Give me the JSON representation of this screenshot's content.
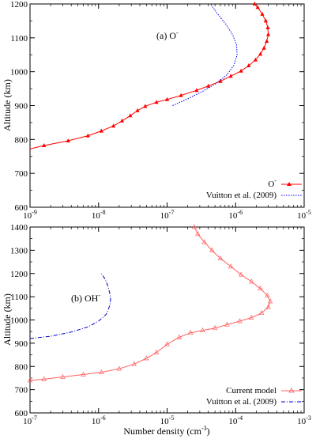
{
  "chart_data": [
    {
      "type": "line",
      "panel_label": "(a) O",
      "panel_label_superscript": "-",
      "xlabel": "",
      "ylabel": "Altitude (km)",
      "x_scale": "log",
      "xlim": [
        1e-09,
        1e-05
      ],
      "ylim": [
        600,
        1200
      ],
      "x_tick_exponents": [
        -9,
        -8,
        -7,
        -6,
        -5
      ],
      "y_ticks": [
        600,
        700,
        800,
        900,
        1000,
        1100,
        1200
      ],
      "legend_position": "bottom-right",
      "series": [
        {
          "name": "O",
          "name_superscript": "-",
          "color": "#ff0000",
          "style": "solid-with-triangle-markers",
          "points": [
            [
              9e-10,
              770
            ],
            [
              1.6e-09,
              782
            ],
            [
              3.6e-09,
              796
            ],
            [
              7e-09,
              811
            ],
            [
              1.1e-08,
              825
            ],
            [
              1.65e-08,
              840
            ],
            [
              2.2e-08,
              855
            ],
            [
              2.9e-08,
              870
            ],
            [
              3.7e-08,
              885
            ],
            [
              4.8e-08,
              898
            ],
            [
              7e-08,
              910
            ],
            [
              1e-07,
              918
            ],
            [
              1.6e-07,
              930
            ],
            [
              2.7e-07,
              945
            ],
            [
              4e-07,
              958
            ],
            [
              6e-07,
              972
            ],
            [
              8.5e-07,
              987
            ],
            [
              1.2e-06,
              1002
            ],
            [
              1.55e-06,
              1018
            ],
            [
              1.95e-06,
              1035
            ],
            [
              2.3e-06,
              1052
            ],
            [
              2.6e-06,
              1070
            ],
            [
              2.85e-06,
              1090
            ],
            [
              3e-06,
              1110
            ],
            [
              2.95e-06,
              1130
            ],
            [
              2.75e-06,
              1150
            ],
            [
              2.45e-06,
              1170
            ],
            [
              2.1e-06,
              1190
            ],
            [
              1.9e-06,
              1200
            ]
          ]
        },
        {
          "name": "Vuitton et al. (2009)",
          "color": "#0000ff",
          "style": "dotted",
          "points": [
            [
              1.2e-07,
              900
            ],
            [
              2e-07,
              920
            ],
            [
              3.3e-07,
              942
            ],
            [
              5.2e-07,
              965
            ],
            [
              7.4e-07,
              990
            ],
            [
              9.5e-07,
              1020
            ],
            [
              1.05e-06,
              1050
            ],
            [
              1.03e-06,
              1080
            ],
            [
              9e-07,
              1110
            ],
            [
              7.2e-07,
              1140
            ],
            [
              5.5e-07,
              1170
            ],
            [
              4.3e-07,
              1200
            ]
          ]
        }
      ]
    },
    {
      "type": "line",
      "panel_label": "(b) OH",
      "panel_label_superscript": "-",
      "xlabel": "Number density (cm",
      "xlabel_superscript": "-3",
      "xlabel_suffix": ")",
      "ylabel": "Altitude (km)",
      "x_scale": "log",
      "xlim": [
        1e-07,
        0.001
      ],
      "ylim": [
        600,
        1400
      ],
      "x_tick_exponents": [
        -7,
        -6,
        -5,
        -4,
        -3
      ],
      "y_ticks": [
        600,
        700,
        800,
        900,
        1000,
        1100,
        1200,
        1300,
        1400
      ],
      "legend_position": "bottom-right",
      "series": [
        {
          "name": "Current model",
          "color": "#ff6060",
          "style": "solid-with-open-triangle-markers",
          "points": [
            [
              1e-07,
              740
            ],
            [
              1.6e-07,
              745
            ],
            [
              3e-07,
              755
            ],
            [
              6e-07,
              765
            ],
            [
              1.1e-06,
              775
            ],
            [
              2e-06,
              790
            ],
            [
              3.3e-06,
              810
            ],
            [
              5e-06,
              835
            ],
            [
              7e-06,
              860
            ],
            [
              1e-05,
              895
            ],
            [
              1.5e-05,
              925
            ],
            [
              2.2e-05,
              945
            ],
            [
              3.3e-05,
              955
            ],
            [
              5e-05,
              965
            ],
            [
              7.5e-05,
              980
            ],
            [
              0.000115,
              995
            ],
            [
              0.00017,
              1010
            ],
            [
              0.00024,
              1030
            ],
            [
              0.0003,
              1055
            ],
            [
              0.00032,
              1080
            ],
            [
              0.00029,
              1105
            ],
            [
              0.00023,
              1135
            ],
            [
              0.00017,
              1165
            ],
            [
              0.00012,
              1195
            ],
            [
              8.5e-05,
              1230
            ],
            [
              6e-05,
              1265
            ],
            [
              4.5e-05,
              1300
            ],
            [
              3.5e-05,
              1335
            ],
            [
              2.8e-05,
              1370
            ],
            [
              2.5e-05,
              1400
            ]
          ]
        },
        {
          "name": "Vuitton et al. (2009)",
          "color": "#0000cc",
          "style": "dash-dot",
          "points": [
            [
              1e-07,
              920
            ],
            [
              2e-07,
              930
            ],
            [
              4e-07,
              948
            ],
            [
              7e-07,
              970
            ],
            [
              1e-06,
              995
            ],
            [
              1.3e-06,
              1025
            ],
            [
              1.45e-06,
              1060
            ],
            [
              1.5e-06,
              1090
            ],
            [
              1.45e-06,
              1120
            ],
            [
              1.35e-06,
              1150
            ],
            [
              1.25e-06,
              1175
            ],
            [
              1.1e-06,
              1200
            ]
          ]
        }
      ]
    }
  ]
}
